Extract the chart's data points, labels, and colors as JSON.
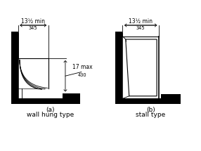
{
  "fig_width": 2.86,
  "fig_height": 2.15,
  "dpi": 100,
  "bg_color": "#ffffff",
  "line_color": "#000000",
  "thick_lw": 5.0,
  "thin_lw": 0.8,
  "dim_lw": 0.6,
  "label_a": "(a)",
  "label_b": "(b)",
  "subtitle_a": "wall hung type",
  "subtitle_b": "stall type",
  "dim_top_text": "13½ min",
  "dim_top_sub": "345",
  "dim_side_text": "17 max",
  "dim_side_sub": "430"
}
